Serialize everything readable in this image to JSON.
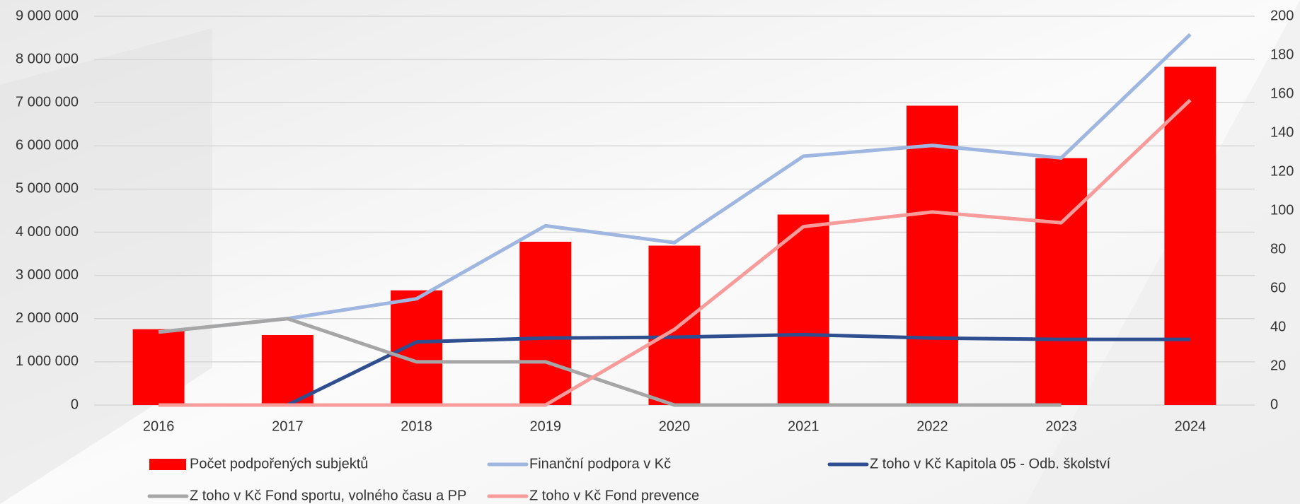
{
  "chart_data": {
    "type": "bar",
    "categories": [
      "2016",
      "2017",
      "2018",
      "2019",
      "2020",
      "2021",
      "2022",
      "2023",
      "2024"
    ],
    "series": [
      {
        "name": "Počet podpořených subjektů",
        "type": "bar",
        "axis": "y2",
        "color": "#ff0000",
        "values": [
          39,
          36,
          59,
          84,
          82,
          98,
          154,
          127,
          174
        ]
      },
      {
        "name": "Finanční podpora v Kč",
        "type": "line",
        "color": "#9fb6e0",
        "values": [
          1690000,
          2000000,
          2460000,
          4150000,
          3760000,
          5760000,
          6010000,
          5720000,
          8580000
        ]
      },
      {
        "name": "Z toho v Kč Kapitola 05 - Odb. školství",
        "type": "line",
        "color": "#2e4e8f",
        "values": [
          0,
          0,
          1460000,
          1550000,
          1570000,
          1630000,
          1550000,
          1520000,
          1520000
        ]
      },
      {
        "name": "Z toho v Kč Fond sportu, volného času a PP",
        "type": "line",
        "color": "#a6a6a6",
        "values": [
          1690000,
          2000000,
          1000000,
          1000000,
          0,
          0,
          0,
          0,
          null
        ]
      },
      {
        "name": "Z toho v Kč Fond prevence",
        "type": "line",
        "color": "#f79b9b",
        "values": [
          0,
          0,
          0,
          0,
          1750000,
          4130000,
          4470000,
          4220000,
          7060000
        ]
      }
    ],
    "ylim": [
      0,
      9000000
    ],
    "yticks": [
      0,
      {
        "value": 1000000,
        "label": "1 000 000"
      },
      {
        "value": 2000000,
        "label": "2 000 000"
      },
      {
        "value": 3000000,
        "label": "3 000 000"
      },
      {
        "value": 4000000,
        "label": "4 000 000"
      },
      {
        "value": 5000000,
        "label": "5 000 000"
      },
      {
        "value": 6000000,
        "label": "6 000 000"
      },
      {
        "value": 7000000,
        "label": "7 000 000"
      },
      {
        "value": 8000000,
        "label": "8 000 000"
      },
      {
        "value": 9000000,
        "label": "9 000 000"
      }
    ],
    "y2lim": [
      0,
      200
    ],
    "y2ticks": [
      0,
      20,
      40,
      60,
      80,
      100,
      120,
      140,
      160,
      180,
      200
    ],
    "grid": true
  }
}
